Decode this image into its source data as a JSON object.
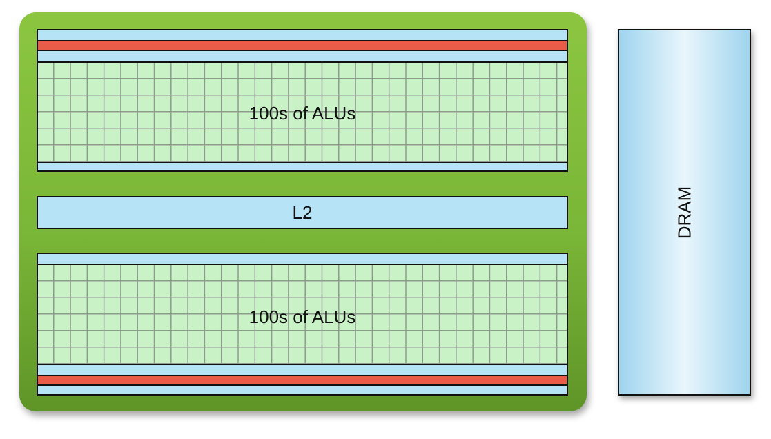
{
  "gpu": {
    "top_block": {
      "label": "100s of ALUs"
    },
    "l2": {
      "label": "L2"
    },
    "bottom_block": {
      "label": "100s of ALUs"
    },
    "colors": {
      "chip": "#7ab637",
      "cache": "#b6e3f5",
      "control": "#e95c47",
      "alu": "#c9f2c6"
    }
  },
  "dram": {
    "label": "DRAM",
    "color": "#b6e3f5"
  }
}
